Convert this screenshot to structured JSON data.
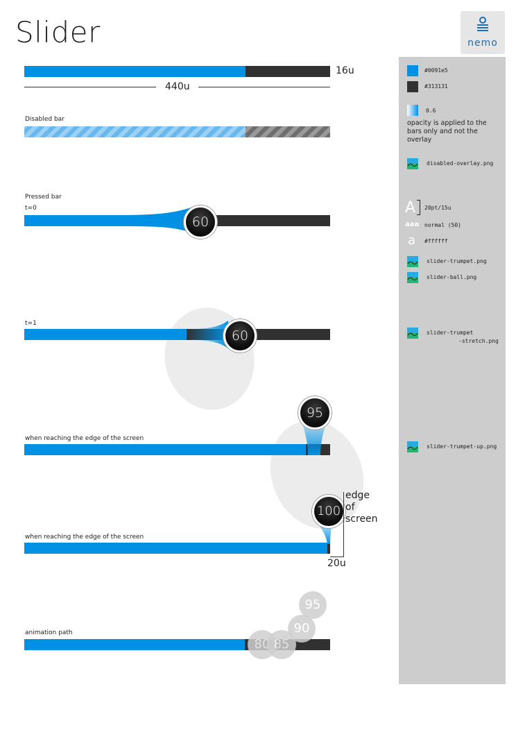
{
  "header": {
    "title": "Slider",
    "logo_text": "nemo"
  },
  "dimensions": {
    "height_label": "16u",
    "width_label": "440u",
    "edge_label_line1": "edge",
    "edge_label_line2": "of",
    "edge_label_line3": "screen",
    "margin_label": "20u"
  },
  "sections": {
    "disabled": {
      "label": "Disabled bar"
    },
    "pressed": {
      "label": "Pressed bar",
      "t0": "t=0",
      "ball_value": "60"
    },
    "t1": {
      "label": "t=1",
      "ball_value": "60"
    },
    "edge1": {
      "label": "when reaching the edge of the screen",
      "ball_value": "95"
    },
    "edge2": {
      "label": "when reaching the edge of the screen",
      "ball_value": "100"
    },
    "animation": {
      "label": "animation path",
      "balls": [
        "80",
        "85",
        "90",
        "95"
      ]
    }
  },
  "sidebar": {
    "color_fill": "#0091e5",
    "color_track": "#313131",
    "opacity_value": "0.6",
    "opacity_note": "opacity is applied to the bars only and not the overlay",
    "disabled_overlay": "disabled-overlay.png",
    "font_size": "20pt/15u",
    "font_weight": "normal (50)",
    "font_color": "#ffffff",
    "trumpet": "slider-trumpet.png",
    "ball": "slider-ball.png",
    "trumpet_stretch_1": "slider-trumpet",
    "trumpet_stretch_2": "-stretch.png",
    "trumpet_up": "slider-trumpet-up.png",
    "glyph_big_a": "A",
    "glyph_small_a": "aaa",
    "glyph_color_a": "a"
  },
  "colors": {
    "fill": "#0091e5",
    "track": "#313131",
    "sidebar_bg": "#cdcdcd"
  }
}
